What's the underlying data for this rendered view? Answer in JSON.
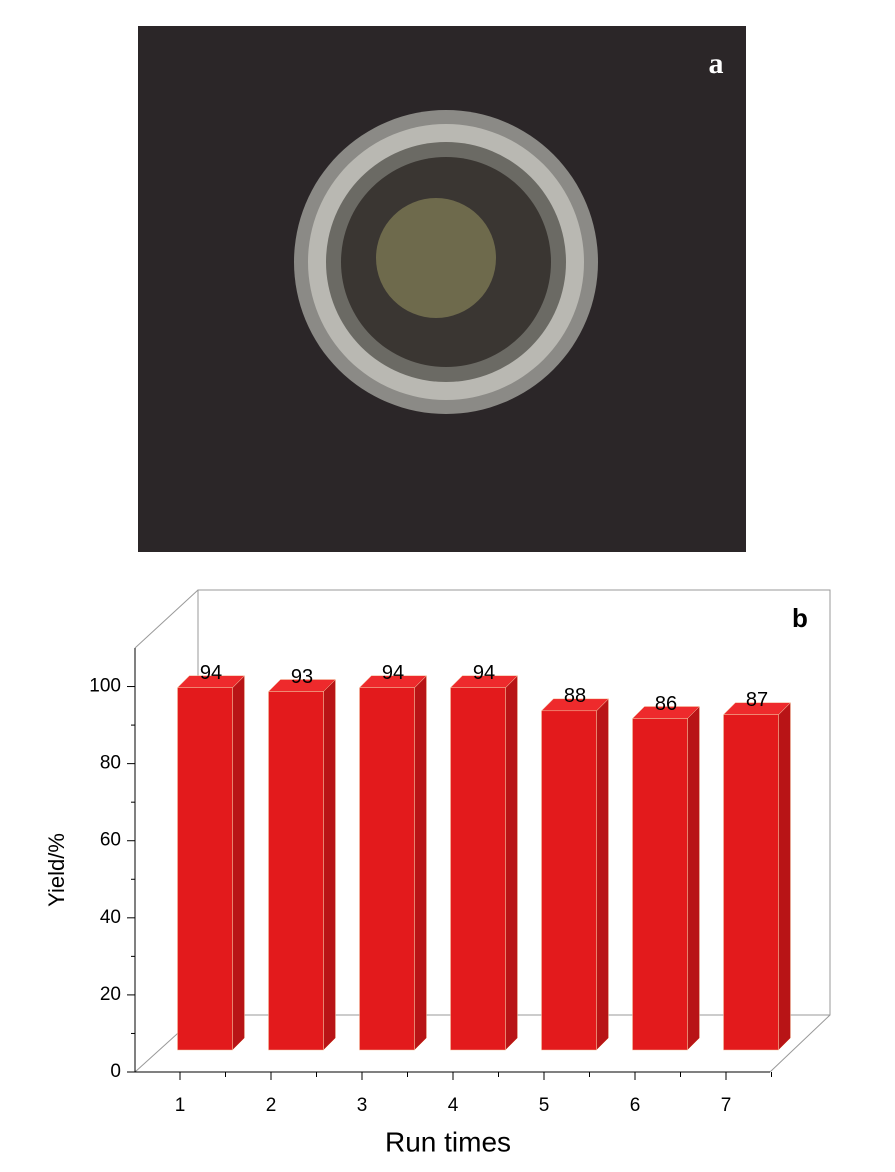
{
  "photo_label": "a",
  "chart_data": {
    "type": "bar3d",
    "panel_label": "b",
    "x_label": "Run times",
    "y_label": "Yield/%",
    "categories": [
      "1",
      "2",
      "3",
      "4",
      "5",
      "6",
      "7"
    ],
    "values": [
      94,
      93,
      94,
      94,
      88,
      86,
      87
    ],
    "color": "#e31a1c",
    "ylim": [
      0,
      110
    ],
    "yticks": [
      0,
      20,
      40,
      60,
      80,
      100
    ]
  }
}
